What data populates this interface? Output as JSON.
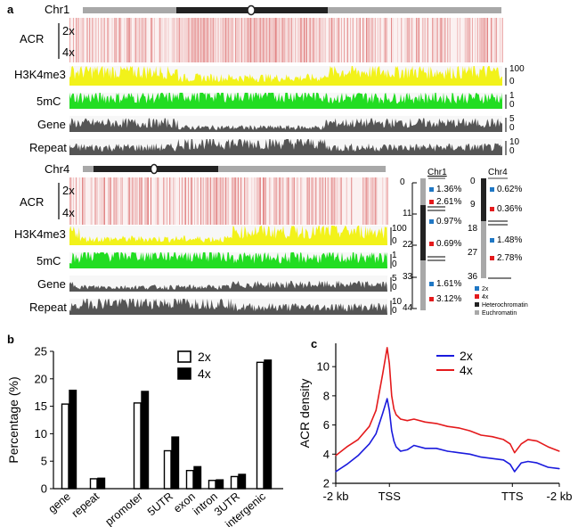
{
  "panel_a": {
    "letter": "a",
    "chr1": {
      "name": "Chr1",
      "acr_label": "ACR",
      "acr_rows": [
        "2x",
        "4x"
      ],
      "tracks": [
        {
          "label": "H3K4me3",
          "color": "#f2f21a",
          "scale": [
            "100",
            "0"
          ]
        },
        {
          "label": "5mC",
          "color": "#22dd22",
          "scale": [
            "1",
            "0"
          ]
        },
        {
          "label": "Gene",
          "color": "#555555",
          "scale": [
            "5",
            "0"
          ]
        },
        {
          "label": "Repeat",
          "color": "#555555",
          "scale": [
            "10",
            "0"
          ]
        }
      ]
    },
    "chr4": {
      "name": "Chr4",
      "acr_label": "ACR",
      "acr_rows": [
        "2x",
        "4x"
      ],
      "tracks": [
        {
          "label": "H3K4me3",
          "color": "#f2f21a",
          "scale": [
            "100",
            "0"
          ]
        },
        {
          "label": "5mC",
          "color": "#22dd22",
          "scale": [
            "1",
            "0"
          ]
        },
        {
          "label": "Gene",
          "color": "#555555",
          "scale": [
            "5",
            "0"
          ]
        },
        {
          "label": "Repeat",
          "color": "#555555",
          "scale": [
            "10",
            "0"
          ]
        }
      ]
    },
    "ideograms": {
      "chr1": {
        "name": "Chr1",
        "ticks": [
          "0",
          "11",
          "22",
          "33",
          "44"
        ],
        "percents": [
          "1.36%",
          "2.61%",
          "0.97%",
          "0.69%",
          "1.61%",
          "3.12%"
        ]
      },
      "chr4": {
        "name": "Chr4",
        "ticks": [
          "0",
          "9",
          "18",
          "27",
          "36"
        ],
        "percents": [
          "0.62%",
          "0.36%",
          "1.48%",
          "2.78%"
        ]
      },
      "legend": [
        {
          "label": "2x",
          "color": "#1f77c4"
        },
        {
          "label": "4x",
          "color": "#e41a1c"
        },
        {
          "label": "Heterochromatin",
          "color": "#222222"
        },
        {
          "label": "Euchromatin",
          "color": "#a8a8a8"
        }
      ]
    }
  },
  "panel_b": {
    "letter": "b",
    "chart_data": {
      "type": "bar",
      "ylabel": "Percentage (%)",
      "ylim": [
        0,
        25
      ],
      "yticks": [
        "0",
        "5",
        "10",
        "15",
        "20",
        "25"
      ],
      "categories": [
        "gene",
        "repeat",
        "promoter",
        "5UTR",
        "exon",
        "intron",
        "3UTR",
        "intergenic"
      ],
      "series": [
        {
          "name": "2x",
          "color": "#ffffff",
          "values": [
            15.4,
            1.8,
            15.6,
            6.9,
            3.3,
            1.5,
            2.2,
            23.0
          ]
        },
        {
          "name": "4x",
          "color": "#000000",
          "values": [
            17.9,
            1.9,
            17.7,
            9.4,
            4.0,
            1.6,
            2.6,
            23.4
          ]
        }
      ]
    }
  },
  "panel_c": {
    "letter": "c",
    "chart_data": {
      "type": "line",
      "ylabel": "ACR density",
      "ylim": [
        2,
        11.6
      ],
      "yticks": [
        "2",
        "4",
        "6",
        "8",
        "10"
      ],
      "xtick_labels": [
        "-2 kb",
        "TSS",
        "TTS",
        "-2 kb"
      ],
      "x": [
        0,
        5,
        10,
        15,
        18,
        21,
        23,
        24,
        25,
        26,
        27,
        29,
        32,
        35,
        40,
        45,
        50,
        55,
        60,
        65,
        70,
        75,
        78,
        80,
        83,
        86,
        90,
        95,
        100
      ],
      "series": [
        {
          "name": "2x",
          "color": "#1a1add",
          "values": [
            2.8,
            3.3,
            3.9,
            4.7,
            5.4,
            6.8,
            7.8,
            7.0,
            5.6,
            4.9,
            4.5,
            4.2,
            4.3,
            4.6,
            4.4,
            4.4,
            4.2,
            4.1,
            4.0,
            3.8,
            3.7,
            3.6,
            3.3,
            2.8,
            3.4,
            3.5,
            3.4,
            3.1,
            3.0
          ]
        },
        {
          "name": "4x",
          "color": "#e41a1c",
          "values": [
            3.9,
            4.5,
            5.0,
            5.9,
            7.0,
            9.5,
            11.3,
            10.2,
            8.0,
            7.1,
            6.7,
            6.4,
            6.3,
            6.4,
            6.2,
            6.1,
            5.9,
            5.8,
            5.6,
            5.3,
            5.2,
            5.0,
            4.7,
            4.1,
            4.7,
            5.0,
            4.9,
            4.5,
            4.2
          ]
        }
      ]
    }
  }
}
